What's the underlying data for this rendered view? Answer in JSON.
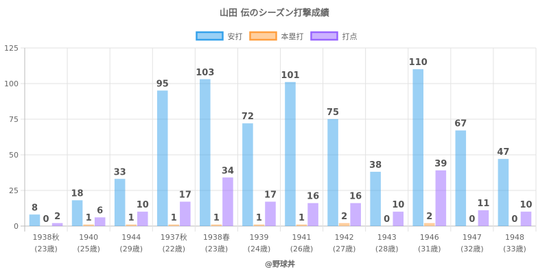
{
  "chart_data": {
    "type": "bar",
    "title": "山田 伝のシーズン打撃成績",
    "xlabel": "",
    "ylabel": "",
    "ylim": [
      0,
      125
    ],
    "yticks": [
      0,
      25,
      50,
      75,
      100,
      125
    ],
    "grid": true,
    "legend_position": "top",
    "categories": [
      [
        "1938秋",
        "(23歳)"
      ],
      [
        "1940",
        "(25歳)"
      ],
      [
        "1944",
        "(29歳)"
      ],
      [
        "1937秋",
        "(22歳)"
      ],
      [
        "1938春",
        "(23歳)"
      ],
      [
        "1939",
        "(24歳)"
      ],
      [
        "1941",
        "(26歳)"
      ],
      [
        "1942",
        "(27歳)"
      ],
      [
        "1943",
        "(28歳)"
      ],
      [
        "1946",
        "(31歳)"
      ],
      [
        "1947",
        "(32歳)"
      ],
      [
        "1948",
        "(33歳)"
      ]
    ],
    "series": [
      {
        "name": "安打",
        "color": "#36a2eb",
        "values": [
          8,
          18,
          33,
          95,
          103,
          72,
          101,
          75,
          38,
          110,
          67,
          47
        ]
      },
      {
        "name": "本塁打",
        "color": "#ff9f40",
        "values": [
          0,
          1,
          1,
          1,
          1,
          1,
          1,
          2,
          0,
          2,
          0,
          0
        ]
      },
      {
        "name": "打点",
        "color": "#9966ff",
        "values": [
          2,
          6,
          10,
          17,
          34,
          17,
          16,
          16,
          10,
          39,
          11,
          10
        ]
      }
    ],
    "credit": "@野球丼"
  }
}
